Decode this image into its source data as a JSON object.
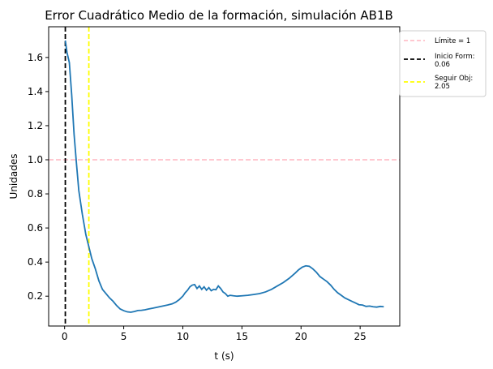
{
  "chart_data": {
    "type": "line",
    "title": "Error Cuadrático Medio de la formación, simulación AB1B",
    "xlabel": "t (s)",
    "ylabel": "Unidades",
    "xlim": [
      -1.35,
      28.35
    ],
    "ylim": [
      0.025,
      1.78
    ],
    "xticks": [
      0,
      5,
      10,
      15,
      20,
      25
    ],
    "yticks": [
      0.2,
      0.4,
      0.6,
      0.8,
      1.0,
      1.2,
      1.4,
      1.6
    ],
    "xtick_labels": [
      "0",
      "5",
      "10",
      "15",
      "20",
      "25"
    ],
    "ytick_labels": [
      "0.2",
      "0.4",
      "0.6",
      "0.8",
      "1.0",
      "1.2",
      "1.4",
      "1.6"
    ],
    "grid": false,
    "legend_position": "outside-top-right",
    "series": [
      {
        "color": "#1f77b4",
        "x": [
          0.06,
          0.2,
          0.4,
          0.6,
          0.8,
          1.0,
          1.2,
          1.5,
          1.8,
          2.05,
          2.3,
          2.6,
          2.9,
          3.2,
          3.5,
          3.8,
          4.1,
          4.4,
          4.7,
          5.0,
          5.3,
          5.6,
          5.9,
          6.2,
          6.5,
          6.8,
          7.1,
          7.5,
          7.9,
          8.3,
          8.7,
          9.1,
          9.4,
          9.7,
          10.0,
          10.2,
          10.4,
          10.6,
          10.8,
          11.0,
          11.2,
          11.4,
          11.6,
          11.8,
          12.0,
          12.2,
          12.4,
          12.6,
          12.8,
          13.0,
          13.2,
          13.4,
          13.6,
          13.8,
          14.0,
          14.3,
          14.6,
          15.0,
          15.5,
          16.0,
          16.5,
          17.0,
          17.5,
          18.0,
          18.5,
          19.0,
          19.5,
          19.8,
          20.1,
          20.4,
          20.7,
          21.0,
          21.3,
          21.6,
          21.9,
          22.2,
          22.5,
          22.8,
          23.1,
          23.4,
          23.7,
          24.0,
          24.3,
          24.6,
          24.9,
          25.2,
          25.5,
          25.8,
          26.1,
          26.4,
          26.7,
          27.0
        ],
        "y": [
          1.7,
          1.63,
          1.57,
          1.38,
          1.15,
          0.98,
          0.82,
          0.68,
          0.56,
          0.49,
          0.42,
          0.36,
          0.29,
          0.24,
          0.215,
          0.19,
          0.17,
          0.145,
          0.125,
          0.115,
          0.108,
          0.106,
          0.11,
          0.116,
          0.117,
          0.12,
          0.125,
          0.13,
          0.136,
          0.142,
          0.148,
          0.155,
          0.165,
          0.18,
          0.2,
          0.22,
          0.235,
          0.255,
          0.265,
          0.268,
          0.245,
          0.26,
          0.24,
          0.255,
          0.235,
          0.25,
          0.232,
          0.24,
          0.238,
          0.26,
          0.245,
          0.225,
          0.215,
          0.2,
          0.205,
          0.202,
          0.2,
          0.202,
          0.205,
          0.21,
          0.215,
          0.225,
          0.24,
          0.26,
          0.28,
          0.305,
          0.335,
          0.355,
          0.37,
          0.378,
          0.375,
          0.36,
          0.34,
          0.315,
          0.3,
          0.285,
          0.265,
          0.24,
          0.22,
          0.205,
          0.19,
          0.18,
          0.17,
          0.16,
          0.15,
          0.148,
          0.14,
          0.142,
          0.138,
          0.136,
          0.14,
          0.138
        ]
      }
    ],
    "hlines": [
      {
        "y": 1.0,
        "color": "#ffb6c1",
        "dash": "dashed",
        "legend": "Límite = 1"
      }
    ],
    "vlines": [
      {
        "x": 0.06,
        "color": "#000000",
        "dash": "dashed",
        "legend_line1": "Inicio Form:",
        "legend_line2": "0.06"
      },
      {
        "x": 2.05,
        "color": "#ffff00",
        "dash": "dashed",
        "legend_line1": "Seguir Obj:",
        "legend_line2": "2.05"
      }
    ]
  }
}
